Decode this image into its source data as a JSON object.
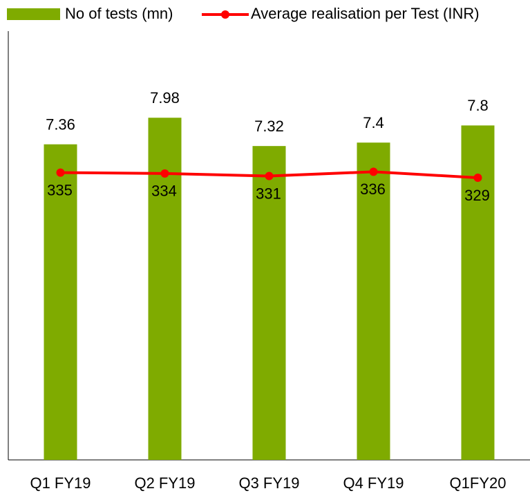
{
  "chart_data": {
    "type": "combo",
    "categories": [
      "Q1 FY19",
      "Q2 FY19",
      "Q3 FY19",
      "Q4 FY19",
      "Q1FY20"
    ],
    "series": [
      {
        "name": "No of tests (mn)",
        "type": "bar",
        "color": "#7fab00",
        "values": [
          7.36,
          7.98,
          7.32,
          7.4,
          7.8
        ]
      },
      {
        "name": "Average realisation per Test (INR)",
        "type": "line",
        "axis": "y2",
        "color": "#ff0000",
        "values": [
          335,
          334,
          331,
          336,
          329
        ]
      }
    ],
    "ylim": [
      0,
      10
    ],
    "y2lim": [
      0,
      500
    ],
    "legend": "top"
  }
}
